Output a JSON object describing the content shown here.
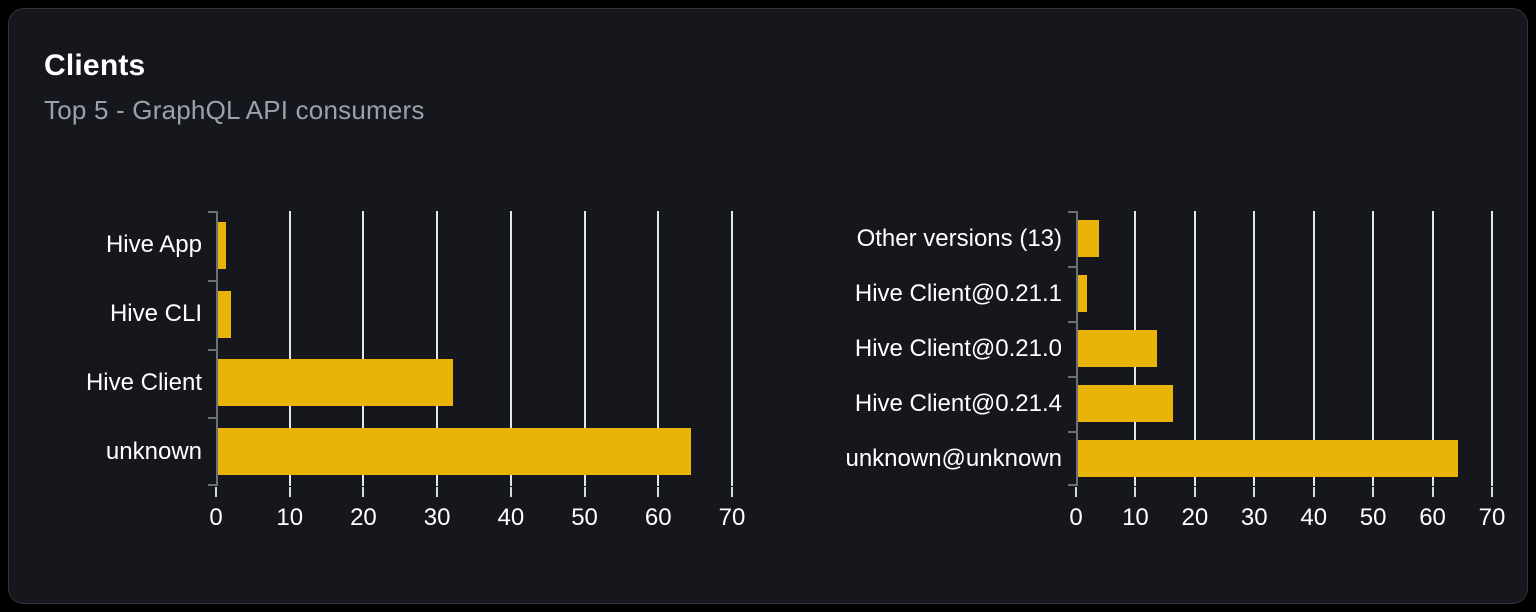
{
  "card": {
    "title": "Clients",
    "subtitle": "Top 5 - GraphQL API consumers"
  },
  "colors": {
    "page_bg": "#000000",
    "card_bg": "#15171c",
    "card_border": "#32353c",
    "bar": "#eab308",
    "grid_line": "#e0e6f1",
    "axis_line": "#6e7079",
    "x_tick": "#d4d9e2",
    "text": "#ffffff",
    "subtitle_text": "#9aa1ac"
  },
  "chart_data": [
    {
      "type": "bar",
      "orientation": "horizontal",
      "title": "",
      "categories": [
        "Hive App",
        "Hive CLI",
        "Hive Client",
        "unknown"
      ],
      "values": [
        1.3,
        2.1,
        32.2,
        64.4
      ],
      "xlabel": "",
      "ylabel": "",
      "xlim": [
        0,
        70
      ],
      "xticks": [
        0,
        10,
        20,
        30,
        40,
        50,
        60,
        70
      ],
      "grid": "vertical",
      "legend": "none",
      "bar_color": "#eab308"
    },
    {
      "type": "bar",
      "orientation": "horizontal",
      "title": "",
      "categories": [
        "Other versions (13)",
        "Hive Client@0.21.1",
        "Hive Client@0.21.0",
        "Hive Client@0.21.4",
        "unknown@unknown"
      ],
      "values": [
        3.8,
        1.9,
        13.7,
        16.4,
        64.2
      ],
      "xlabel": "",
      "ylabel": "",
      "xlim": [
        0,
        70
      ],
      "xticks": [
        0,
        10,
        20,
        30,
        40,
        50,
        60,
        70
      ],
      "grid": "vertical",
      "legend": "none",
      "bar_color": "#eab308"
    }
  ]
}
